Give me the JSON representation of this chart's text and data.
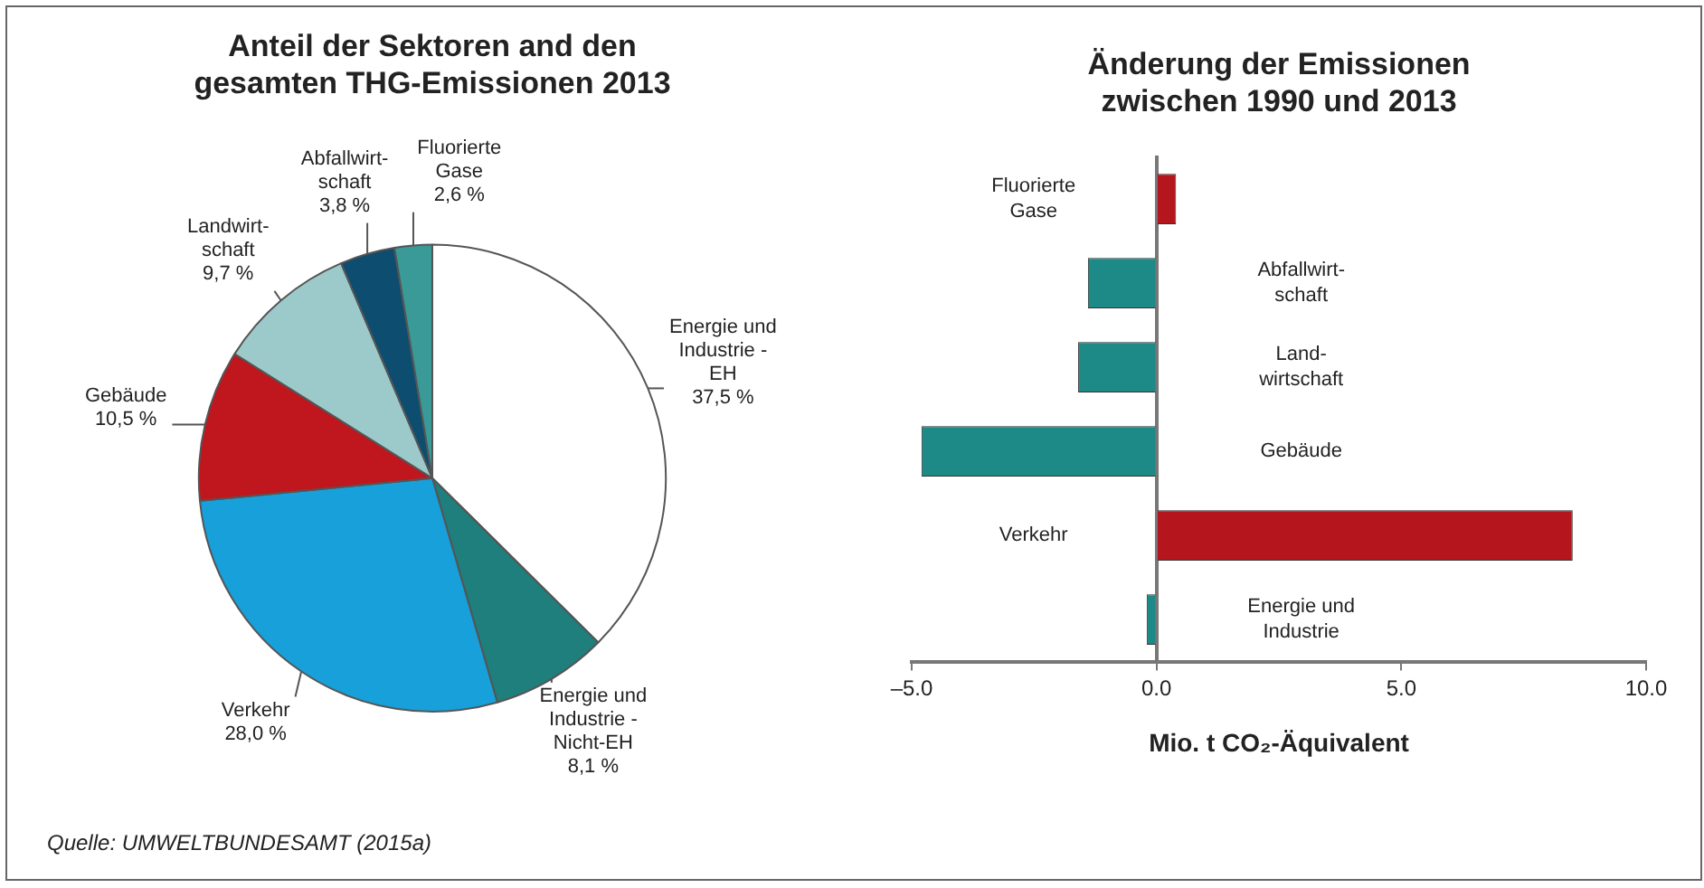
{
  "chart_data": [
    {
      "type": "pie",
      "title": "Anteil der Sektoren and den\ngesamten THG-Emissionen 2013",
      "categories": [
        "Energie und\nIndustrie -\nEH",
        "Energie und\nIndustrie -\nNicht-EH",
        "Verkehr",
        "Gebäude",
        "Landwirt-\nschaft",
        "Abfallwirt-\nschaft",
        "Fluorierte\nGase"
      ],
      "values": [
        37.5,
        8.1,
        28.0,
        10.5,
        9.7,
        3.8,
        2.6
      ],
      "value_labels": [
        "37,5 %",
        "8,1 %",
        "28,0 %",
        "10,5 %",
        "9,7 %",
        "3,8 %",
        "2,6 %"
      ],
      "colors": [
        "#ffffff",
        "#1e7f7c",
        "#17a0da",
        "#c0161e",
        "#9ccaca",
        "#0d4d70",
        "#3a9a98"
      ],
      "annotations": [
        "Quelle: UMWELTBUNDESAMT (2015a)"
      ]
    },
    {
      "type": "bar",
      "orientation": "horizontal",
      "title": "Änderung der Emissionen\nzwischen 1990 und 2013",
      "categories": [
        "Fluorierte\nGase",
        "Abfallwirt-\nschaft",
        "Land-\nwirtschaft",
        "Gebäude",
        "Verkehr",
        "Energie und\nIndustrie"
      ],
      "values": [
        0.4,
        -1.4,
        -1.6,
        -4.8,
        8.5,
        -0.2
      ],
      "colors": [
        "#b5161e",
        "#1e8a88",
        "#1e8a88",
        "#1e8a88",
        "#b5161e",
        "#1e8a88"
      ],
      "xlim": [
        -5,
        10
      ],
      "xticks": [
        {
          "value": -5,
          "label": "–5.0"
        },
        {
          "value": 0,
          "label": "0.0"
        },
        {
          "value": 5,
          "label": "5.0"
        },
        {
          "value": 10,
          "label": "10.0"
        }
      ],
      "xlabel": "Mio. t CO₂-Äquivalent"
    }
  ]
}
